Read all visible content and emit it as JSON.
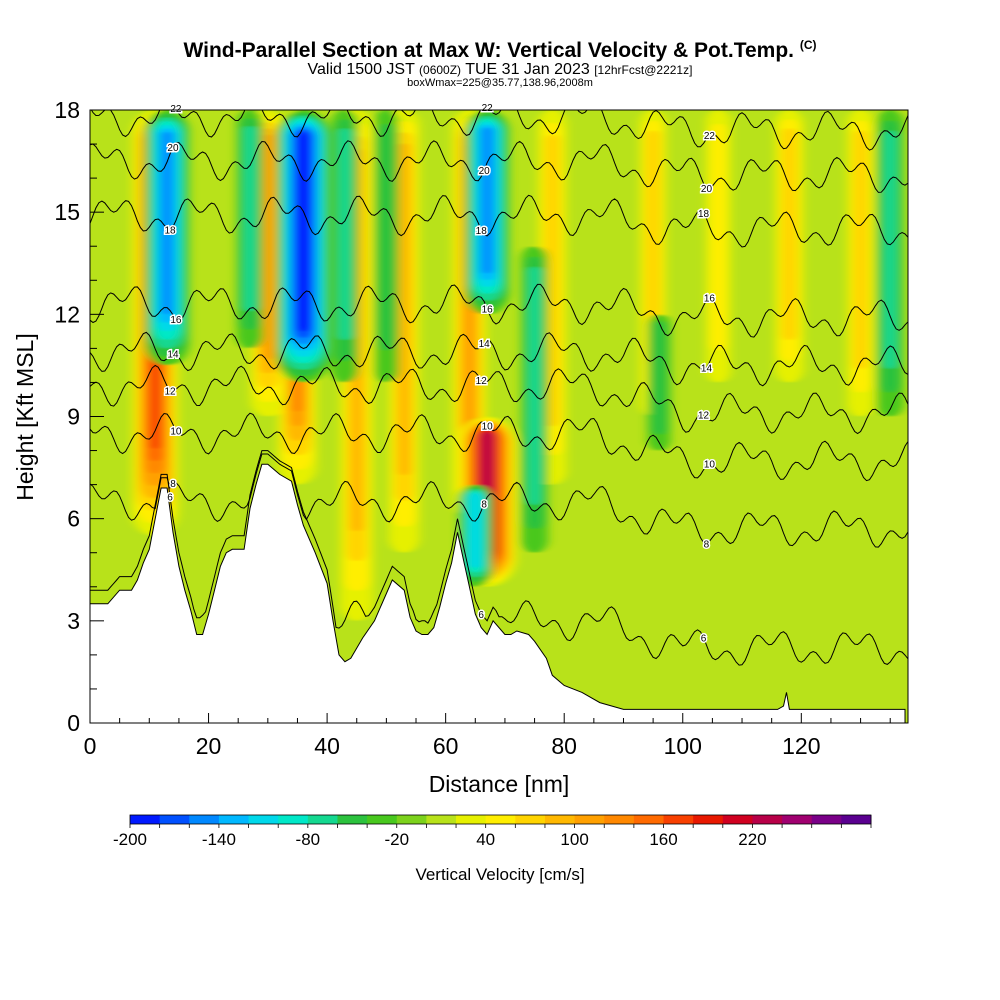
{
  "header": {
    "title": "Wind-Parallel Section at Max W: Vertical Velocity & Pot.Temp.",
    "title_mark": "(C)",
    "valid_label": "Valid 1500 JST",
    "valid_utc": "(0600Z)",
    "valid_date": "TUE 31 Jan 2023",
    "forecast_info": "[12hrFcst@2221z]",
    "box_info": "boxWmax=225@35.77,138.96,2008m"
  },
  "chart_data": {
    "type": "heatmap",
    "xlabel": "Distance [nm]",
    "ylabel": "Height [Kft MSL]",
    "xlim": [
      0,
      138
    ],
    "ylim": [
      0,
      18
    ],
    "x_ticks": [
      0,
      20,
      40,
      60,
      80,
      100,
      120
    ],
    "y_ticks": [
      0,
      3,
      6,
      9,
      12,
      15,
      18
    ],
    "colorbar": {
      "label": "Vertical Velocity [cm/s]",
      "min": -200,
      "step": 20,
      "tick_labels": [
        "-200",
        "-140",
        "-80",
        "-20",
        "40",
        "100",
        "160",
        "220"
      ],
      "colors": [
        "#0019ff",
        "#0050ff",
        "#0088ff",
        "#00b8ff",
        "#00d8ea",
        "#00e8c8",
        "#14d890",
        "#2cc23e",
        "#48c81e",
        "#7cd21c",
        "#b8e21a",
        "#e6f000",
        "#ffee00",
        "#ffd400",
        "#ffb800",
        "#ffa000",
        "#ff8800",
        "#ff6a00",
        "#f84000",
        "#e81800",
        "#d00020",
        "#b80048",
        "#a00070",
        "#7a0088",
        "#5a0090"
      ]
    },
    "updrafts": [
      {
        "x": 11,
        "y_bottom": 5.5,
        "y_top": 18,
        "w": 160
      },
      {
        "x": 35,
        "y_bottom": 7.0,
        "y_top": 18,
        "w": 120
      },
      {
        "x": 64,
        "y_bottom": 6.0,
        "y_top": 18,
        "w": 100
      },
      {
        "x": 67,
        "y_bottom": 4.0,
        "y_top": 9.0,
        "w": 225
      },
      {
        "x": 30,
        "y_bottom": 9.0,
        "y_top": 18,
        "w": 100
      },
      {
        "x": 45,
        "y_bottom": 3.0,
        "y_top": 18,
        "w": 90
      },
      {
        "x": 53,
        "y_bottom": 5.0,
        "y_top": 18,
        "w": 80
      },
      {
        "x": 78,
        "y_bottom": 7.0,
        "y_top": 18,
        "w": 70
      },
      {
        "x": 95,
        "y_bottom": 9.0,
        "y_top": 18,
        "w": 60
      },
      {
        "x": 106,
        "y_bottom": 10.0,
        "y_top": 18,
        "w": 50
      },
      {
        "x": 118,
        "y_bottom": 10.0,
        "y_top": 18,
        "w": 70
      },
      {
        "x": 130,
        "y_bottom": 9.0,
        "y_top": 18,
        "w": 60
      }
    ],
    "downdrafts": [
      {
        "x": 13,
        "y_bottom": 10.5,
        "y_top": 18,
        "w": -150
      },
      {
        "x": 36,
        "y_bottom": 10.0,
        "y_top": 18,
        "w": -200
      },
      {
        "x": 27,
        "y_bottom": 11.0,
        "y_top": 18,
        "w": -60
      },
      {
        "x": 43,
        "y_bottom": 10.0,
        "y_top": 18,
        "w": -60
      },
      {
        "x": 50,
        "y_bottom": 10.0,
        "y_top": 18,
        "w": -50
      },
      {
        "x": 67,
        "y_bottom": 12.0,
        "y_top": 18,
        "w": -150
      },
      {
        "x": 65,
        "y_bottom": 4.0,
        "y_top": 7.0,
        "w": -100
      },
      {
        "x": 75,
        "y_bottom": 5.0,
        "y_top": 14.0,
        "w": -60
      },
      {
        "x": 96,
        "y_bottom": 8.0,
        "y_top": 12.0,
        "w": -40
      },
      {
        "x": 135,
        "y_bottom": 9.0,
        "y_top": 18,
        "w": -60
      }
    ],
    "terrain": {
      "x": [
        0,
        3,
        5,
        7,
        8,
        9,
        10,
        12,
        13,
        14,
        15,
        16,
        17,
        18,
        19,
        20,
        21,
        22,
        23,
        24,
        26,
        27,
        28,
        29,
        30,
        32,
        34,
        35,
        36,
        38,
        40,
        41,
        42,
        43,
        44,
        46,
        48,
        49,
        51,
        53,
        54,
        55,
        56,
        57,
        58,
        59,
        60,
        61,
        62,
        63,
        64,
        65,
        66,
        67,
        68,
        70,
        71,
        72,
        74,
        75,
        77,
        78,
        80,
        83,
        86,
        90,
        95,
        100,
        110,
        113,
        115,
        116,
        117,
        117.5,
        118,
        120,
        125,
        130,
        135,
        137.5
      ],
      "y": [
        3.5,
        3.5,
        3.9,
        3.9,
        4.2,
        4.7,
        5.1,
        6.9,
        6.9,
        5.6,
        4.6,
        3.9,
        3.3,
        2.6,
        2.6,
        3.2,
        3.9,
        4.6,
        5.0,
        5.1,
        5.1,
        6.3,
        7.0,
        7.6,
        7.6,
        7.3,
        7.1,
        6.4,
        5.8,
        5.0,
        4.1,
        3.0,
        2.0,
        1.8,
        1.9,
        2.5,
        3.0,
        3.4,
        4.2,
        3.9,
        3.1,
        2.7,
        2.6,
        2.6,
        2.8,
        3.4,
        4.1,
        4.7,
        5.6,
        4.8,
        4.0,
        3.2,
        2.8,
        2.6,
        3.0,
        2.6,
        2.6,
        2.7,
        2.6,
        2.4,
        1.9,
        1.4,
        1.1,
        0.9,
        0.6,
        0.4,
        0.4,
        0.4,
        0.4,
        0.4,
        0.4,
        0.4,
        0.5,
        0.9,
        0.4,
        0.4,
        0.4,
        0.4,
        0.4,
        0.4
      ]
    },
    "theta_contours": [
      {
        "level": 6,
        "label": "6",
        "base": 3.0,
        "start_x": 0
      },
      {
        "level": 8,
        "label": "8",
        "base": 6.5,
        "start_x": 0
      },
      {
        "level": 10,
        "label": "10",
        "base": 8.5,
        "start_x": 0
      },
      {
        "level": 12,
        "label": "12",
        "base": 9.9,
        "start_x": 0
      },
      {
        "level": 14,
        "label": "14",
        "base": 10.9,
        "start_x": 0
      },
      {
        "level": 16,
        "label": "16",
        "base": 12.3,
        "start_x": 0
      },
      {
        "level": 18,
        "label": "18",
        "base": 14.9,
        "start_x": 0
      },
      {
        "level": 20,
        "label": "20",
        "base": 16.5,
        "start_x": 0
      },
      {
        "level": 22,
        "label": "22",
        "base": 17.8,
        "start_x": 0
      }
    ]
  }
}
